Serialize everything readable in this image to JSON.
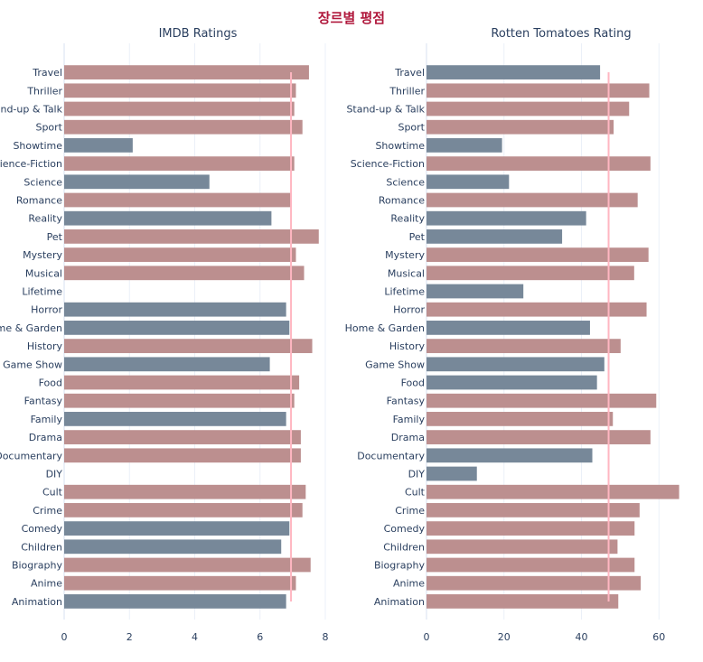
{
  "title": "장르별 평점",
  "colors": {
    "title": "#b0183c",
    "above": "#bc8f8f",
    "below": "#778899",
    "avg_line": "#ffb6c1",
    "grid": "#ebf0f8",
    "axis_text": "#2a3f5f"
  },
  "chart_data": [
    {
      "type": "bar",
      "orientation": "horizontal",
      "title": "IMDB Ratings",
      "xlim": [
        0,
        8
      ],
      "xticks": [
        0,
        2,
        4,
        6,
        8
      ],
      "average_line": 6.95,
      "grid": true,
      "categories": [
        "Travel",
        "Thriller",
        "Stand-up & Talk",
        "Sport",
        "Showtime",
        "Science-Fiction",
        "Science",
        "Romance",
        "Reality",
        "Pet",
        "Mystery",
        "Musical",
        "Lifetime",
        "Horror",
        "Home & Garden",
        "History",
        "Game Show",
        "Food",
        "Fantasy",
        "Family",
        "Drama",
        "Documentary",
        "DIY",
        "Cult",
        "Crime",
        "Comedy",
        "Children",
        "Biography",
        "Anime",
        "Animation"
      ],
      "values": [
        7.5,
        7.1,
        7.05,
        7.3,
        2.1,
        7.05,
        4.45,
        6.95,
        6.35,
        7.8,
        7.1,
        7.35,
        null,
        6.8,
        6.9,
        7.6,
        6.3,
        7.2,
        7.05,
        6.8,
        7.25,
        7.25,
        null,
        7.4,
        7.3,
        6.9,
        6.65,
        7.55,
        7.1,
        6.8
      ]
    },
    {
      "type": "bar",
      "orientation": "horizontal",
      "title": "Rotten Tomatoes Rating",
      "xlim": [
        0,
        66
      ],
      "xticks": [
        0,
        20,
        40,
        60
      ],
      "average_line": 47,
      "grid": true,
      "categories": [
        "Travel",
        "Thriller",
        "Stand-up & Talk",
        "Sport",
        "Showtime",
        "Science-Fiction",
        "Science",
        "Romance",
        "Reality",
        "Pet",
        "Mystery",
        "Musical",
        "Lifetime",
        "Horror",
        "Home & Garden",
        "History",
        "Game Show",
        "Food",
        "Fantasy",
        "Family",
        "Drama",
        "Documentary",
        "DIY",
        "Cult",
        "Crime",
        "Comedy",
        "Children",
        "Biography",
        "Anime",
        "Animation"
      ],
      "values": [
        44.8,
        57.5,
        52.3,
        48.3,
        19.5,
        57.8,
        21.3,
        54.5,
        41.2,
        35,
        57.3,
        53.6,
        25,
        56.8,
        42.2,
        50.1,
        45.9,
        44,
        59.3,
        48.1,
        57.8,
        42.8,
        13,
        65.2,
        55,
        53.7,
        49.3,
        53.7,
        55.3,
        49.5
      ]
    }
  ]
}
